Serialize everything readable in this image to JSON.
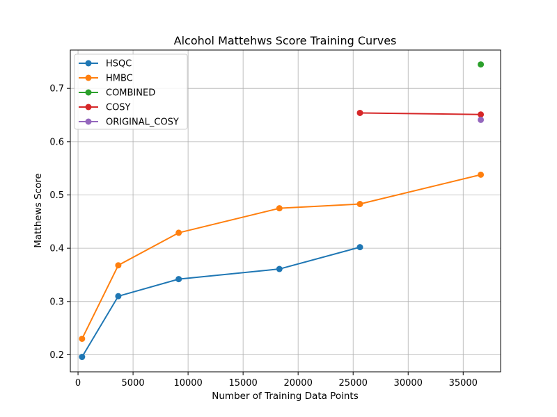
{
  "chart_data": {
    "type": "line",
    "title": "Alcohol Mattehws Score Training Curves",
    "xlabel": "Number of Training Data Points",
    "ylabel": "Matthews Score",
    "xlim": [
      -700,
      38400
    ],
    "ylim": [
      0.168,
      0.772
    ],
    "xticks": [
      0,
      5000,
      10000,
      15000,
      20000,
      25000,
      30000,
      35000
    ],
    "xtick_labels": [
      "0",
      "5000",
      "10000",
      "15000",
      "20000",
      "25000",
      "30000",
      "35000"
    ],
    "yticks": [
      0.2,
      0.3,
      0.4,
      0.5,
      0.6,
      0.7
    ],
    "ytick_labels": [
      "0.2",
      "0.3",
      "0.4",
      "0.5",
      "0.6",
      "0.7"
    ],
    "grid": true,
    "legend_position": "top-left",
    "series": [
      {
        "name": "HSQC",
        "color": "#1f77b4",
        "x": [
          366,
          3660,
          9150,
          18300,
          25620
        ],
        "y": [
          0.196,
          0.31,
          0.342,
          0.361,
          0.402
        ]
      },
      {
        "name": "HMBC",
        "color": "#ff7f0e",
        "x": [
          366,
          3660,
          9150,
          18300,
          25620,
          36600
        ],
        "y": [
          0.23,
          0.368,
          0.429,
          0.475,
          0.483,
          0.538
        ]
      },
      {
        "name": "COMBINED",
        "color": "#2ca02c",
        "x": [
          36600
        ],
        "y": [
          0.745
        ]
      },
      {
        "name": "COSY",
        "color": "#d62728",
        "x": [
          25620,
          36600
        ],
        "y": [
          0.654,
          0.651
        ]
      },
      {
        "name": "ORIGINAL_COSY",
        "color": "#9467bd",
        "x": [
          36600
        ],
        "y": [
          0.641
        ]
      }
    ]
  }
}
